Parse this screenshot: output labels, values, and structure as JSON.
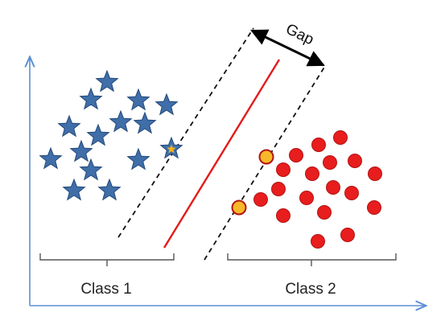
{
  "labels": {
    "gap": "Gap",
    "class1": "Class 1",
    "class2": "Class 2"
  },
  "colors": {
    "axis": "#5b8fd6",
    "star_fill": "#3f6ea8",
    "star_stroke": "#24497a",
    "support_star_fill": "#f2b21c",
    "circle_fill": "#e81d1d",
    "circle_stroke": "#b21414",
    "support_circle_fill": "#f7b92a",
    "support_circle_stroke": "#b21414",
    "hyperplane": "#e31b1b",
    "margin_lines": "#111111",
    "gap_arrow": "#000000",
    "bracket": "#555555"
  },
  "class1": {
    "shape": "star",
    "count": 18,
    "support_vectors": 1
  },
  "class2": {
    "shape": "circle",
    "count": 20,
    "support_vectors": 2
  }
}
